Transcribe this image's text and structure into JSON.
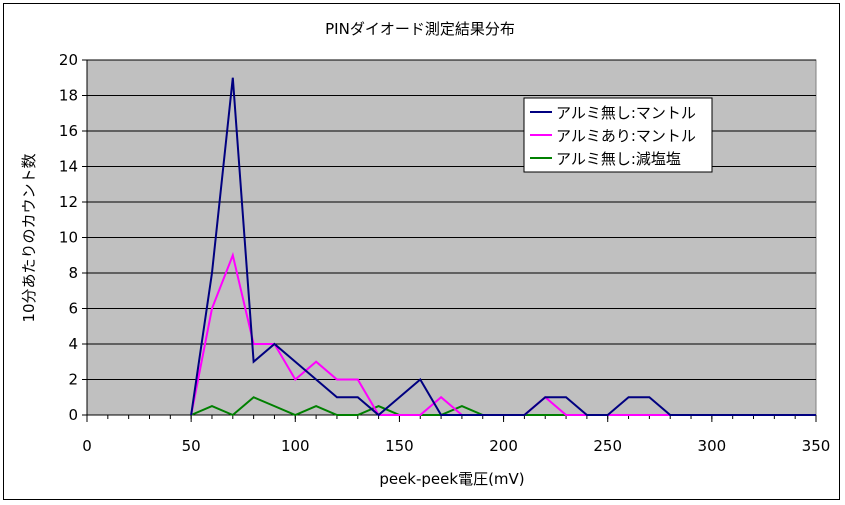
{
  "chart_data": {
    "type": "line",
    "title": "PINダイオード測定結果分布",
    "xlabel": "peek-peek電圧(mV)",
    "ylabel": "10分あたりのカウント数",
    "xlim": [
      0,
      350
    ],
    "ylim": [
      0,
      20
    ],
    "xticks": [
      0,
      50,
      100,
      150,
      200,
      250,
      300,
      350
    ],
    "yticks": [
      0,
      2,
      4,
      6,
      8,
      10,
      12,
      14,
      16,
      18,
      20
    ],
    "grid": true,
    "legend_position": "top-right",
    "plot_background": "#c0c0c0",
    "x": [
      50,
      60,
      70,
      80,
      90,
      100,
      110,
      120,
      130,
      140,
      150,
      160,
      170,
      180,
      190,
      200,
      210,
      220,
      230,
      240,
      250,
      260,
      270,
      280,
      290,
      300,
      310,
      320,
      330,
      340,
      350
    ],
    "series": [
      {
        "name": "アルミ無し:マントル",
        "color": "#000080",
        "values": [
          0,
          8,
          19,
          3,
          4,
          3,
          2,
          1,
          1,
          0,
          1,
          2,
          0,
          0,
          0,
          0,
          0,
          1,
          1,
          0,
          0,
          1,
          1,
          0,
          0,
          0,
          0,
          0,
          0,
          0,
          0
        ]
      },
      {
        "name": "アルミあり:マントル",
        "color": "#ff00ff",
        "values": [
          0,
          6,
          9,
          4,
          4,
          2,
          3,
          2,
          2,
          0,
          0,
          0,
          1,
          0,
          0,
          0,
          0,
          1,
          0,
          0,
          0,
          0,
          0,
          0,
          0,
          0,
          0,
          0,
          0,
          0,
          0
        ]
      },
      {
        "name": "アルミ無し:減塩塩",
        "color": "#008000",
        "values": [
          0,
          0.5,
          0,
          1,
          0.5,
          0,
          0.5,
          0,
          0,
          0.5,
          0,
          0,
          0,
          0.5,
          0,
          0,
          0,
          0,
          0,
          0,
          0,
          0,
          0,
          0,
          0,
          0,
          0,
          0,
          0,
          0,
          0
        ]
      }
    ]
  }
}
